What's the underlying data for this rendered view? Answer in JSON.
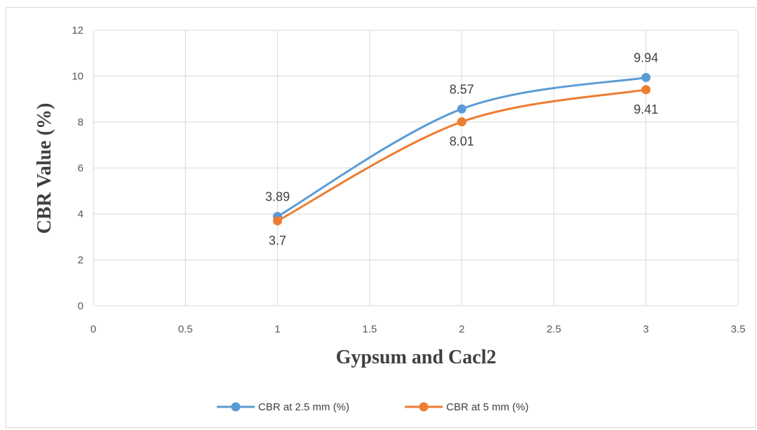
{
  "chart_data": {
    "type": "scatter",
    "title": "",
    "xlabel": "Gypsum and Cacl2",
    "ylabel": "CBR Value (%)",
    "xlim": [
      0,
      3.5
    ],
    "ylim": [
      0,
      12
    ],
    "x_ticks": [
      0,
      0.5,
      1,
      1.5,
      2,
      2.5,
      3,
      3.5
    ],
    "x_tick_labels": [
      "0",
      "0.5",
      "1",
      "1.5",
      "2",
      "2.5",
      "3",
      "3.5"
    ],
    "y_ticks": [
      0,
      2,
      4,
      6,
      8,
      10,
      12
    ],
    "y_tick_labels": [
      "0",
      "2",
      "4",
      "6",
      "8",
      "10",
      "12"
    ],
    "grid": true,
    "smooth_lines": true,
    "legend_position": "bottom",
    "series": [
      {
        "name": "CBR at 2.5 mm (%)",
        "color": "#5b9bd5",
        "x": [
          1,
          2,
          3
        ],
        "y": [
          3.89,
          8.57,
          9.94
        ],
        "labels": [
          "3.89",
          "8.57",
          "9.94"
        ],
        "label_position": "above"
      },
      {
        "name": "CBR at 5 mm (%)",
        "color": "#ed7d31",
        "x": [
          1,
          2,
          3
        ],
        "y": [
          3.7,
          8.01,
          9.41
        ],
        "labels": [
          "3.7",
          "8.01",
          "9.41"
        ],
        "label_position": "below"
      }
    ]
  }
}
